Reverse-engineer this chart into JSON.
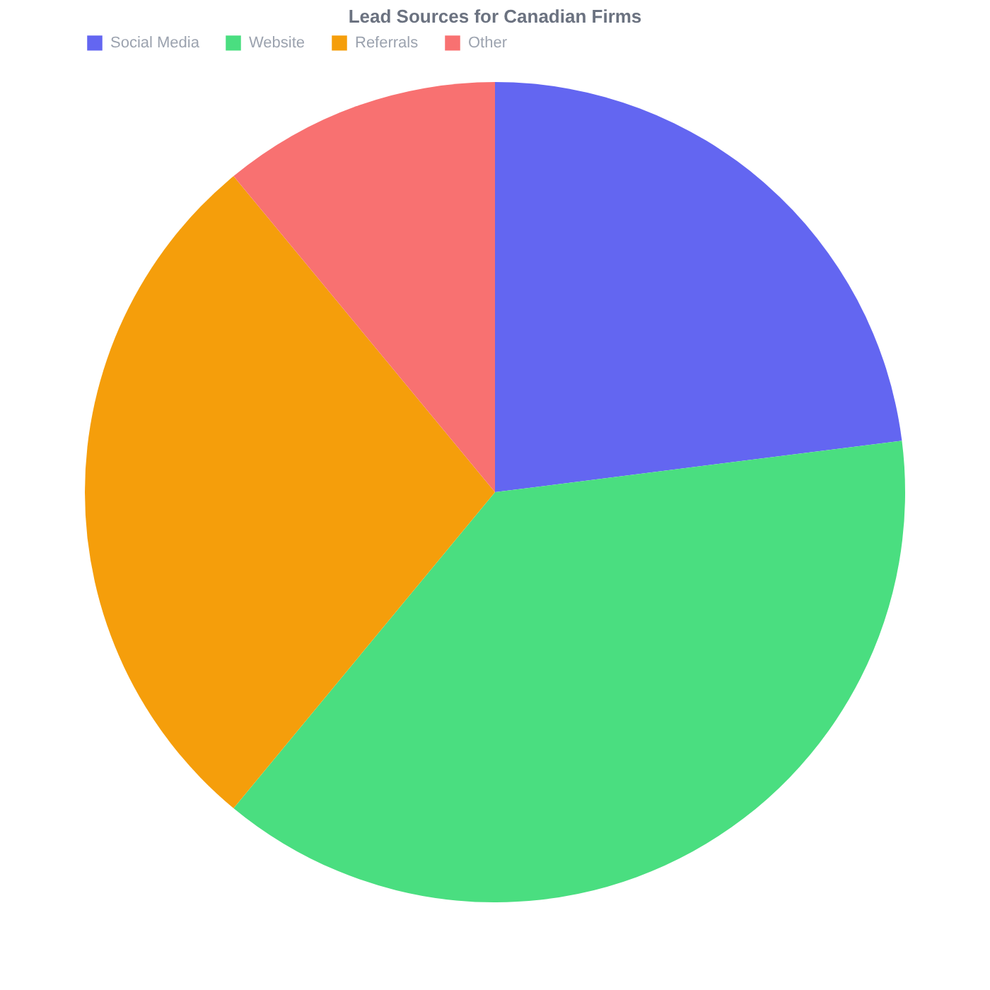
{
  "chart_data": {
    "type": "pie",
    "title": "Lead Sources for Canadian Firms",
    "categories": [
      "Social Media",
      "Website",
      "Referrals",
      "Other"
    ],
    "values": [
      23,
      38,
      28,
      11
    ],
    "colors": [
      "#6366f1",
      "#4ade80",
      "#f59e0b",
      "#f87171"
    ],
    "legend": "top"
  }
}
